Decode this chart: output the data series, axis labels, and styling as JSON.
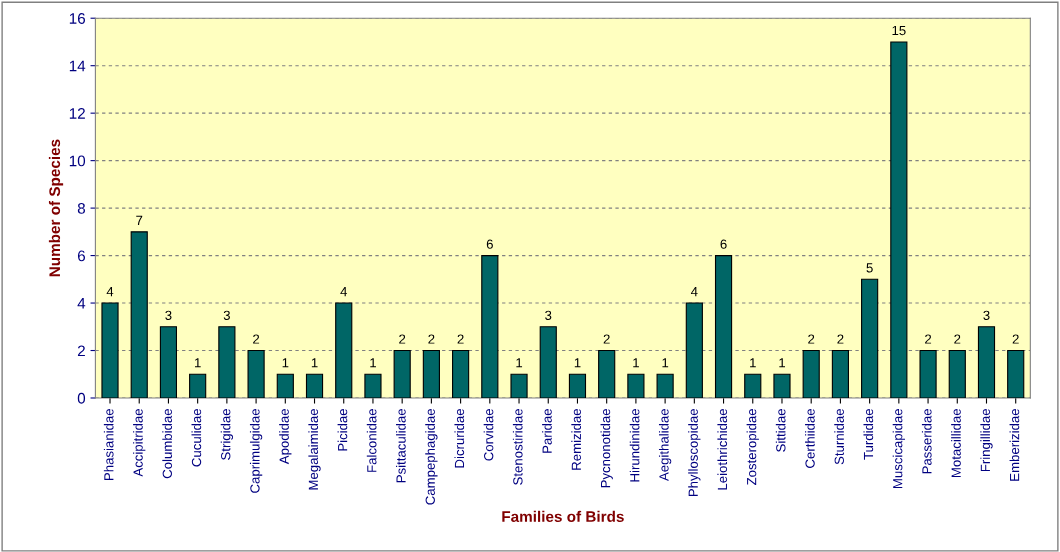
{
  "chart_data": {
    "type": "bar",
    "xlabel": "Families of Birds",
    "ylabel": "Number of Species",
    "categories": [
      "Phasianidae",
      "Accipitridae",
      "Columbidae",
      "Cuculidae",
      "Strigidae",
      "Caprimulgidae",
      "Apodidae",
      "Megalaimidae",
      "Picidae",
      "Falconidae",
      "Psittaculidae",
      "Campephagidae",
      "Dicruridae",
      "Corvidae",
      "Stenostiridae",
      "Paridae",
      "Remizidae",
      "Pycnonotidae",
      "Hirundinidae",
      "Aegithalidae",
      "Phylloscopidae",
      "Leiothrichidae",
      "Zosteropidae",
      "Sittidae",
      "Certhiidae",
      "Sturnidae",
      "Turdidae",
      "Muscicapidae",
      "Passeridae",
      "Motacillidae",
      "Fringillidae",
      "Emberizidae"
    ],
    "values": [
      4,
      7,
      3,
      1,
      3,
      2,
      1,
      1,
      4,
      1,
      2,
      2,
      2,
      6,
      1,
      3,
      1,
      2,
      1,
      1,
      4,
      6,
      1,
      1,
      2,
      2,
      5,
      15,
      2,
      2,
      3,
      2
    ],
    "color": "#006666",
    "ylim": [
      0,
      16
    ],
    "yticks": [
      0,
      2,
      4,
      6,
      8,
      10,
      12,
      14,
      16
    ],
    "grid": "y",
    "data_labels": true
  }
}
